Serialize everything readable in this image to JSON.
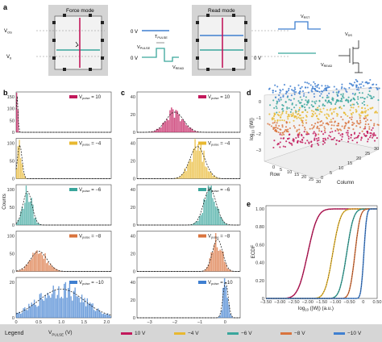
{
  "panel_labels": {
    "a": "a",
    "b": "b",
    "c": "c",
    "d": "d",
    "e": "e"
  },
  "panel_a": {
    "force_mode_title": "Force mode",
    "read_mode_title": "Read mode",
    "v_os_label": "V",
    "v_os_sub": "OS",
    "v0_label": "V",
    "v0_sub": "0",
    "zero_v_1": "0 V",
    "zero_v_2": "0 V",
    "zero_v_3": "0 V",
    "v_pulse_label": "V",
    "v_pulse_sub": "PULSE",
    "t_pulse_label": "T",
    "t_pulse_sub": "PULSE",
    "v_read_label": "V",
    "v_read_sub": "READ",
    "v_rst_label": "V",
    "v_rst_sub": "RST",
    "v_ds_label": "V",
    "v_ds_sub": "DS",
    "v_read2_label": "V",
    "v_read2_sub": "READ"
  },
  "panel_b": {
    "ylabel": "Counts",
    "xlabel": "w (a.u.)",
    "xticks": [
      "0",
      "0.5",
      "1.0",
      "1.5",
      "2.0"
    ],
    "rows": [
      {
        "legend": "V",
        "sub": "pulse",
        "value": "= 10",
        "color": "#c2185b",
        "yticks": [
          "0",
          "50",
          "100",
          "150"
        ]
      },
      {
        "legend": "V",
        "sub": "pulse",
        "value": "= −4",
        "color": "#e8b830",
        "yticks": [
          "0",
          "50",
          "100"
        ]
      },
      {
        "legend": "V",
        "sub": "pulse",
        "value": "= −6",
        "color": "#3aa69c",
        "yticks": [
          "0",
          "50",
          "100"
        ]
      },
      {
        "legend": "V",
        "sub": "pulse",
        "value": "= −8",
        "color": "#d9733d",
        "yticks": [
          "0",
          "50",
          "100"
        ]
      },
      {
        "legend": "V",
        "sub": "pulse",
        "value": "= −10",
        "color": "#3f7fd0",
        "yticks": [
          "0",
          "20"
        ]
      }
    ]
  },
  "panel_c": {
    "xlabel": "log",
    "xlabel_sub": "10",
    "xlabel_rest": " (|W|) (a.u.)",
    "xticks": [
      "−3",
      "−2",
      "−1",
      "0"
    ],
    "rows": [
      {
        "legend": "V",
        "sub": "pulse",
        "value": "= 10",
        "color": "#c2185b",
        "yticks": [
          "0",
          "20",
          "40"
        ]
      },
      {
        "legend": "V",
        "sub": "pulse",
        "value": "= −4",
        "color": "#e8b830",
        "yticks": [
          "0",
          "20",
          "40"
        ]
      },
      {
        "legend": "V",
        "sub": "pulse",
        "value": "= −6",
        "color": "#3aa69c",
        "yticks": [
          "0",
          "20",
          "40"
        ]
      },
      {
        "legend": "V",
        "sub": "pulse",
        "value": "= −8",
        "color": "#d9733d",
        "yticks": [
          "0",
          "20",
          "40"
        ]
      },
      {
        "legend": "V",
        "sub": "pulse",
        "value": "= −10",
        "color": "#3f7fd0",
        "yticks": [
          "0",
          "20",
          "40"
        ]
      }
    ]
  },
  "panel_d": {
    "zlabel": "log",
    "zlabel_sub": "10",
    "zlabel_rest": " (|W|)",
    "zticks": [
      "0",
      "−1",
      "−2",
      "−3"
    ],
    "row_label": "Row",
    "col_label": "Column",
    "row_ticks": [
      "0",
      "5",
      "10",
      "15",
      "20",
      "25",
      "30"
    ],
    "col_ticks": [
      "0",
      "5",
      "10",
      "15",
      "20",
      "25",
      "30"
    ]
  },
  "panel_e": {
    "ylabel": "ECDF",
    "xlabel": "log",
    "xlabel_sub": "10",
    "xlabel_rest": " (|W|) (a.u.)",
    "yticks": [
      "0",
      "0.20",
      "0.40",
      "0.60",
      "0.80",
      "1.00"
    ],
    "xticks": [
      "−3.50",
      "−3.00",
      "−2.50",
      "−2.00",
      "−1.50",
      "−1.00",
      "−0.50",
      "0",
      "0.50"
    ]
  },
  "legend": {
    "title": "Legend",
    "vpulse": "V",
    "vpulse_sub": "PULSE",
    "vpulse_unit": " (V)",
    "items": [
      {
        "label": "10 V",
        "color": "#c2185b"
      },
      {
        "label": "−4 V",
        "color": "#e8b830"
      },
      {
        "label": "−6 V",
        "color": "#3aa69c"
      },
      {
        "label": "−8 V",
        "color": "#d9733d"
      },
      {
        "label": "−10 V",
        "color": "#3f7fd0"
      }
    ]
  },
  "chart_data": [
    {
      "type": "bar",
      "panel": "b",
      "xlabel": "w (a.u.)",
      "ylabel": "Counts",
      "series": [
        {
          "name": "Vpulse = 10",
          "center": 0.02,
          "width": 0.02,
          "peak": 150,
          "ylim": [
            0,
            160
          ]
        },
        {
          "name": "Vpulse = −4",
          "center": 0.08,
          "width": 0.05,
          "peak": 100,
          "ylim": [
            0,
            120
          ]
        },
        {
          "name": "Vpulse = −6",
          "center": 0.25,
          "width": 0.1,
          "peak": 100,
          "ylim": [
            0,
            120
          ]
        },
        {
          "name": "Vpulse = −8",
          "center": 0.5,
          "width": 0.18,
          "peak": 60,
          "ylim": [
            0,
            120
          ]
        },
        {
          "name": "Vpulse = −10",
          "center": 1.0,
          "width": 0.5,
          "peak": 25,
          "ylim": [
            0,
            35
          ]
        }
      ],
      "xlim": [
        0,
        2.1
      ]
    },
    {
      "type": "bar",
      "panel": "c",
      "xlabel": "log10 (|W|) (a.u.)",
      "series": [
        {
          "name": "Vpulse = 10",
          "center": -2.0,
          "width": 0.35,
          "peak": 25,
          "ylim": [
            0,
            50
          ]
        },
        {
          "name": "Vpulse = −4",
          "center": -1.1,
          "width": 0.3,
          "peak": 40,
          "ylim": [
            0,
            50
          ]
        },
        {
          "name": "Vpulse = −6",
          "center": -0.6,
          "width": 0.25,
          "peak": 45,
          "ylim": [
            0,
            50
          ]
        },
        {
          "name": "Vpulse = −8",
          "center": -0.3,
          "width": 0.2,
          "peak": 40,
          "ylim": [
            0,
            50
          ]
        },
        {
          "name": "Vpulse = −10",
          "center": 0.02,
          "width": 0.1,
          "peak": 45,
          "ylim": [
            0,
            50
          ]
        }
      ],
      "xlim": [
        -3.5,
        0.6
      ]
    },
    {
      "type": "line",
      "panel": "e",
      "xlabel": "log10 (|W|) (a.u.)",
      "ylabel": "ECDF",
      "xlim": [
        -3.5,
        0.5
      ],
      "ylim": [
        0,
        1.0
      ],
      "series": [
        {
          "name": "10 V",
          "median": -2.0,
          "spread": 0.28
        },
        {
          "name": "−4 V",
          "median": -1.1,
          "spread": 0.22
        },
        {
          "name": "−6 V",
          "median": -0.6,
          "spread": 0.2
        },
        {
          "name": "−8 V",
          "median": -0.3,
          "spread": 0.15
        },
        {
          "name": "−10 V",
          "median": 0.02,
          "spread": 0.08
        }
      ]
    }
  ]
}
